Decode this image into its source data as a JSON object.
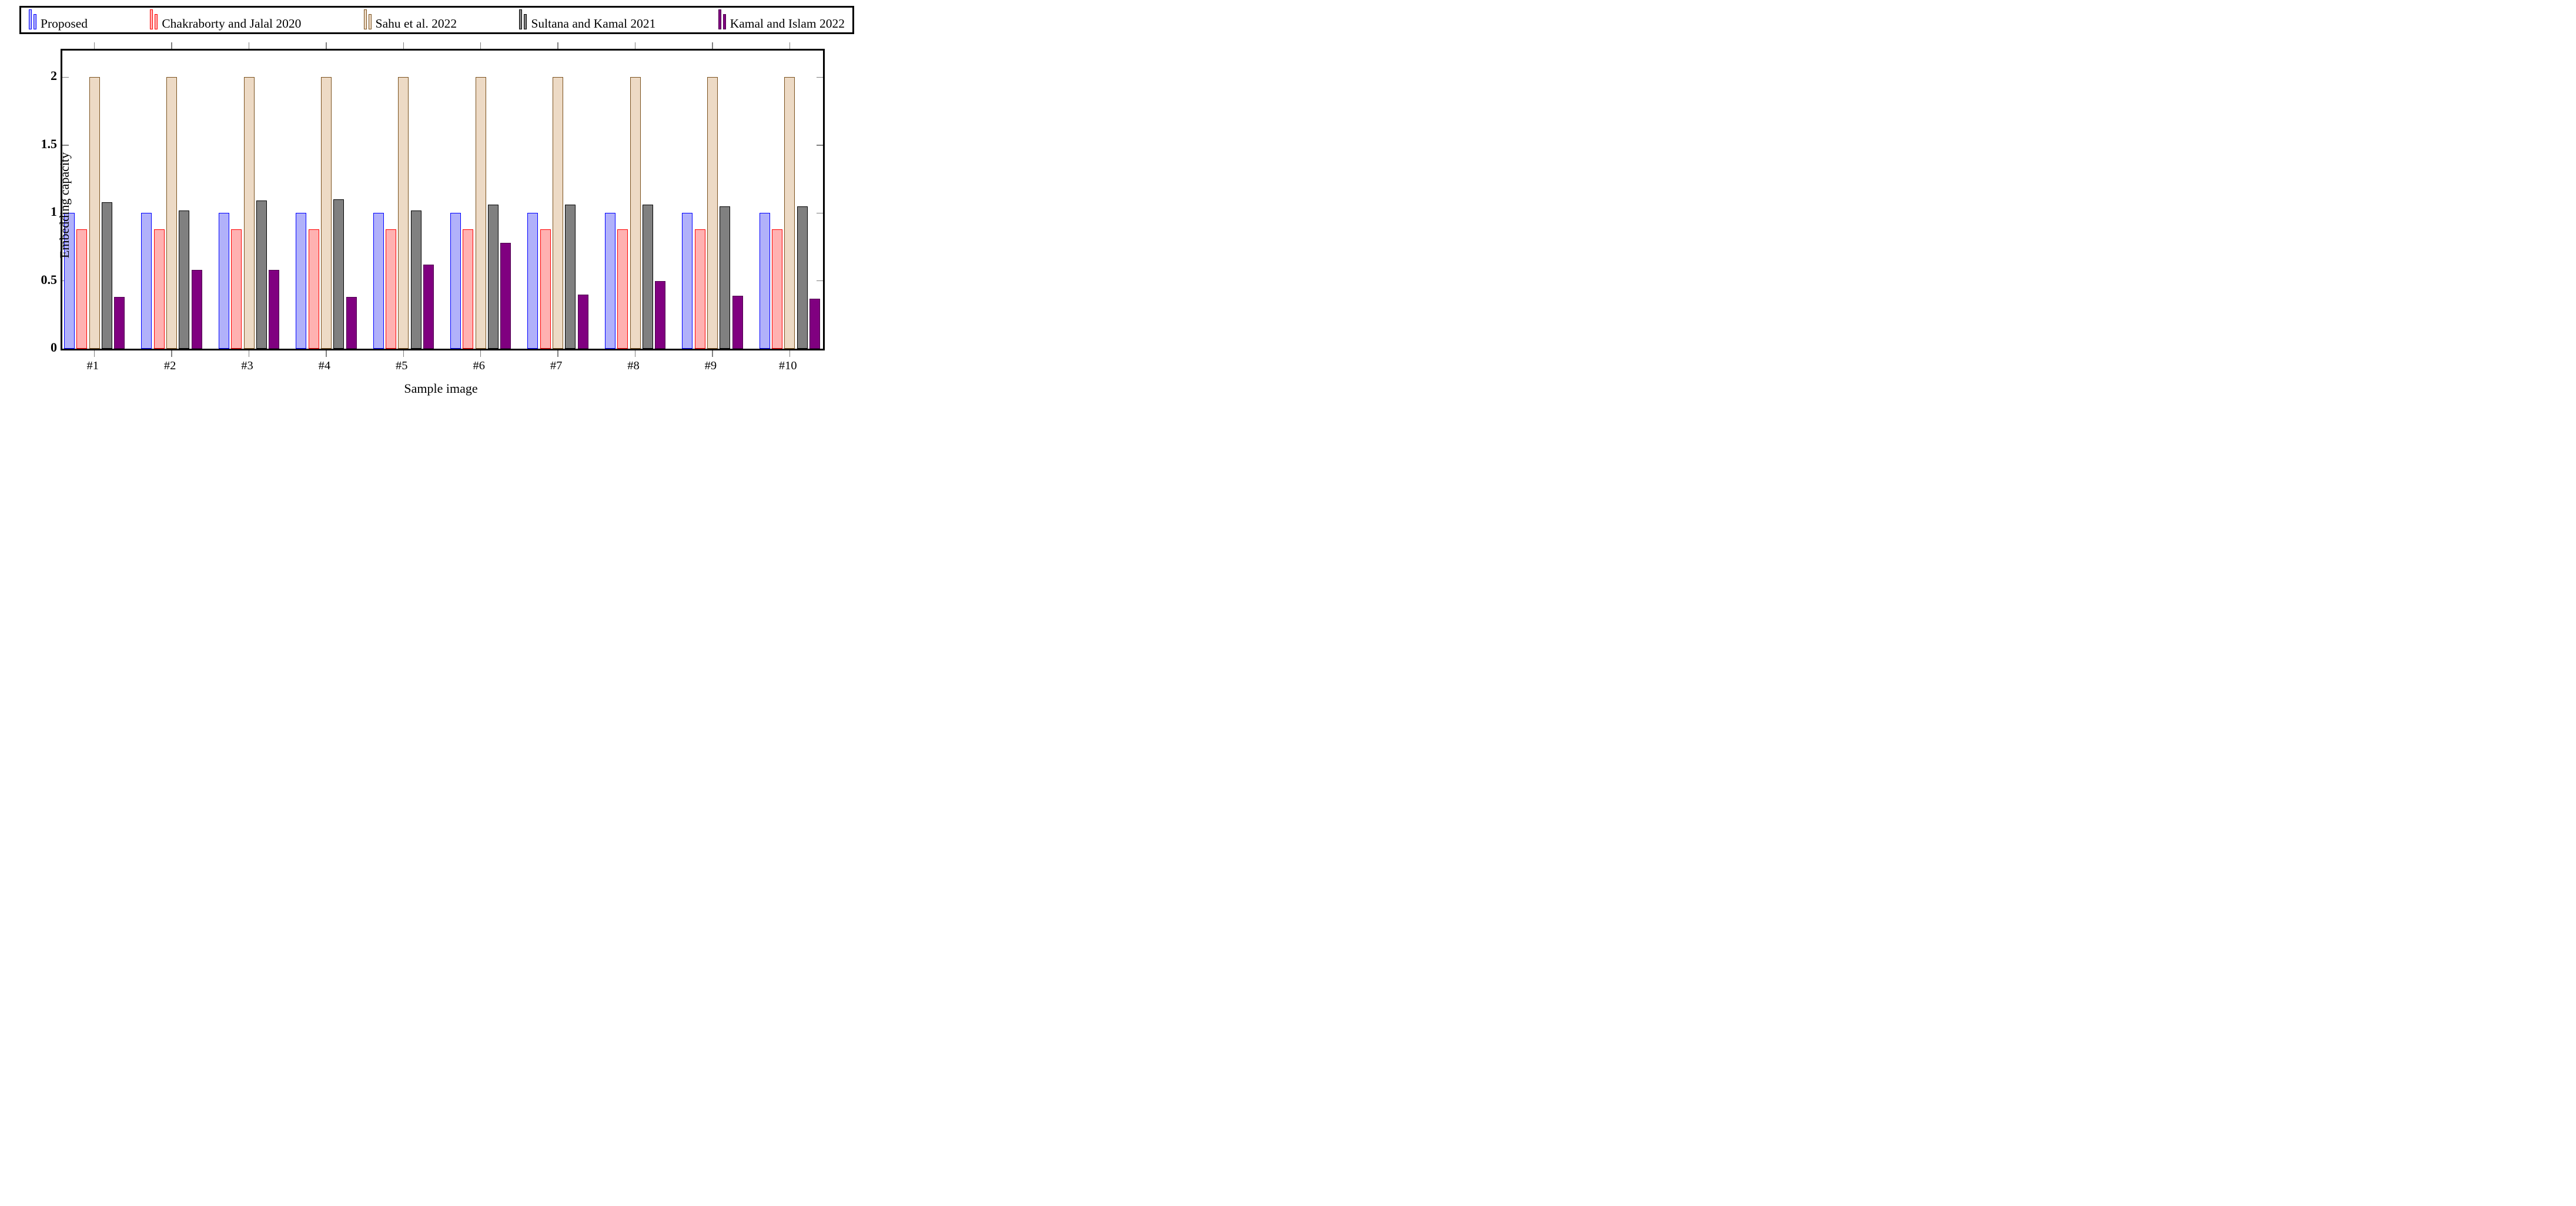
{
  "chart_data": {
    "type": "bar",
    "title": "",
    "xlabel": "Sample image",
    "ylabel": "Embedding capacity",
    "categories": [
      "#1",
      "#2",
      "#3",
      "#4",
      "#5",
      "#6",
      "#7",
      "#8",
      "#9",
      "#10"
    ],
    "series": [
      {
        "name": "Proposed",
        "values": [
          1.0,
          1.0,
          1.0,
          1.0,
          1.0,
          1.0,
          1.0,
          1.0,
          1.0,
          1.0
        ],
        "fill_color": "#b1b1fa",
        "border_color": "#0000ff"
      },
      {
        "name": "Chakraborty and Jalal 2020",
        "values": [
          0.88,
          0.88,
          0.88,
          0.88,
          0.88,
          0.88,
          0.88,
          0.88,
          0.88,
          0.88
        ],
        "fill_color": "#ffb1b1",
        "border_color": "#ff0000"
      },
      {
        "name": "Sahu et al. 2022",
        "values": [
          2.0,
          2.0,
          2.0,
          2.0,
          2.0,
          2.0,
          2.0,
          2.0,
          2.0,
          2.0
        ],
        "fill_color": "#eddac5",
        "border_color": "#7b521f"
      },
      {
        "name": "Sultana and Kamal 2021",
        "values": [
          1.08,
          1.02,
          1.09,
          1.1,
          1.02,
          1.06,
          1.06,
          1.06,
          1.05,
          1.05
        ],
        "fill_color": "#808080",
        "border_color": "#000000"
      },
      {
        "name": "Kamal and Islam 2022",
        "values": [
          0.38,
          0.58,
          0.58,
          0.38,
          0.62,
          0.78,
          0.4,
          0.5,
          0.39,
          0.37
        ],
        "fill_color": "#800080",
        "border_color": "#4d004d"
      }
    ],
    "yticks": [
      {
        "value": 0,
        "label": "0"
      },
      {
        "value": 0.5,
        "label": "0.5"
      },
      {
        "value": 1,
        "label": "1"
      },
      {
        "value": 1.5,
        "label": "1.5"
      },
      {
        "value": 2,
        "label": "2"
      }
    ],
    "ylim": [
      0,
      2.197
    ],
    "grid": false,
    "legend_position": "top",
    "frame_color": "#000000",
    "tick_color": "#7f7f7f"
  }
}
